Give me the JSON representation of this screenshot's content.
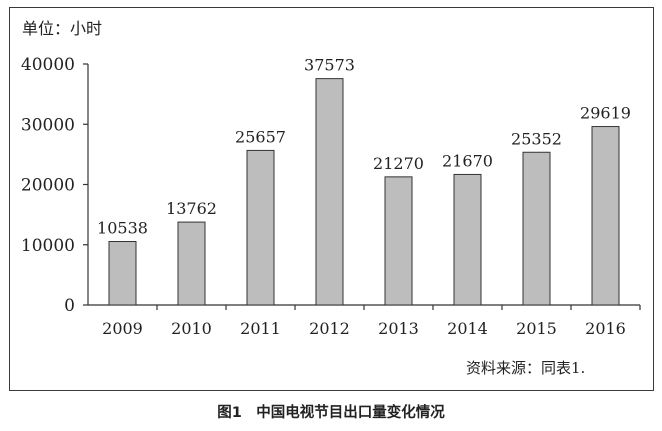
{
  "chart_data": {
    "type": "bar",
    "categories": [
      "2009",
      "2010",
      "2011",
      "2012",
      "2013",
      "2014",
      "2015",
      "2016"
    ],
    "values": [
      10538,
      13762,
      25657,
      37573,
      21270,
      21670,
      25352,
      29619
    ],
    "ylim": [
      0,
      40000
    ],
    "yticks": [
      "0",
      "10000",
      "20000",
      "30000",
      "40000"
    ],
    "unit_label": "单位：小时",
    "grid": false,
    "bar_color": "#bdbdbd",
    "bar_edge_color": "#333333"
  },
  "source_note": "资料来源：同表1.",
  "caption": "图1　中国电视节目出口量变化情况"
}
